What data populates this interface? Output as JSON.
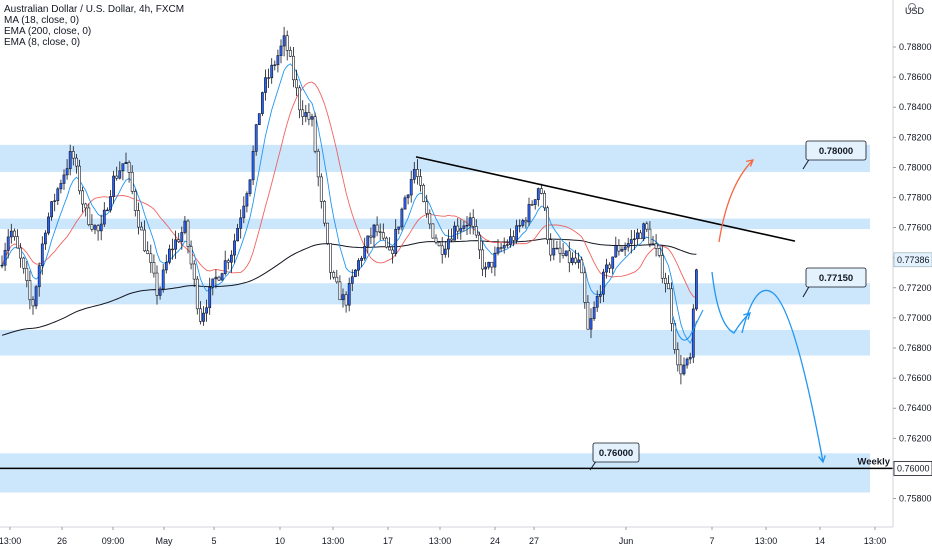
{
  "header": {
    "symbol_line": "Australian Dollar / U.S. Dollar, 4h, FXCM",
    "indicators": [
      "MA (18, close, 0)",
      "EMA (200, close, 0)",
      "EMA (8, close, 0)"
    ]
  },
  "price_axis": {
    "unit_label": "USD",
    "ticks": [
      "0.78800",
      "0.78600",
      "0.78400",
      "0.78200",
      "0.78000",
      "0.77800",
      "0.77600",
      "0.77400",
      "0.77200",
      "0.77000",
      "0.76800",
      "0.76600",
      "0.76400",
      "0.76200",
      "0.76000",
      "0.75800"
    ],
    "current_price_label": "0.77386",
    "weekly_price_label": "0.76000"
  },
  "time_axis": {
    "ticks": [
      "13:00",
      "26",
      "09:00",
      "May",
      "5",
      "10",
      "13:00",
      "17",
      "13:00",
      "24",
      "27",
      "Jun",
      "7",
      "13:00",
      "14",
      "13:00"
    ]
  },
  "annotations": {
    "label_top": "0.78000",
    "label_mid": "0.77150",
    "label_bottom": "0.76000",
    "weekly_text": "Weekly"
  },
  "chart_data": {
    "type": "candlestick",
    "instrument": "AUD/USD",
    "timeframe": "4h",
    "y_axis": {
      "min": 0.757,
      "max": 0.7905,
      "scale": "linear",
      "side": "right"
    },
    "support_resistance_zones": [
      {
        "low": 0.7797,
        "high": 0.7815
      },
      {
        "low": 0.7759,
        "high": 0.7766
      },
      {
        "low": 0.7709,
        "high": 0.7723
      },
      {
        "low": 0.7675,
        "high": 0.7692
      },
      {
        "low": 0.7584,
        "high": 0.761
      }
    ],
    "horizontal_level": {
      "value": 0.76,
      "label": "Weekly"
    },
    "trendline": {
      "from": 0.7807,
      "to": 0.7751
    },
    "colors": {
      "bull_candle": "#2962ff",
      "bear_candle": "#ffffff",
      "candle_outline": "#131722",
      "ma18": "#2196f3",
      "ema200": "#131722",
      "ema8": "#ef5350",
      "zone": "#bbdefb",
      "projection_up": "#f7673f",
      "projection_down": "#2196f3"
    }
  }
}
